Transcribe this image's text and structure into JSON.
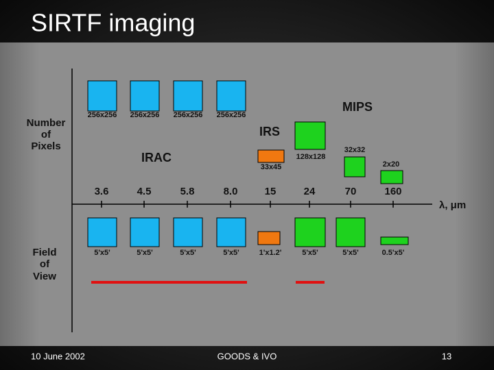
{
  "title": "SIRTF imaging",
  "row_labels": {
    "pixels": [
      "Number",
      "of",
      "Pixels"
    ],
    "field": [
      "Field",
      "of",
      "View"
    ]
  },
  "axis_label": "λ, μm",
  "instruments": {
    "irac": "IRAC",
    "irs": "IRS",
    "mips": "MIPS"
  },
  "wavelengths": [
    "3.6",
    "4.5",
    "5.8",
    "8.0",
    "15",
    "24",
    "70",
    "160"
  ],
  "pixel_formats": [
    "256x256",
    "256x256",
    "256x256",
    "256x256",
    "33x45",
    "128x128",
    "32x32",
    "2x20"
  ],
  "fields_of_view": [
    "5'x5'",
    "5'x5'",
    "5'x5'",
    "5'x5'",
    "1'x1.2'",
    "5'x5'",
    "5'x5'",
    "0.5'x5'"
  ],
  "footer": {
    "date": "10 June 2002",
    "center": "GOODS & IVO",
    "page": "13"
  }
}
